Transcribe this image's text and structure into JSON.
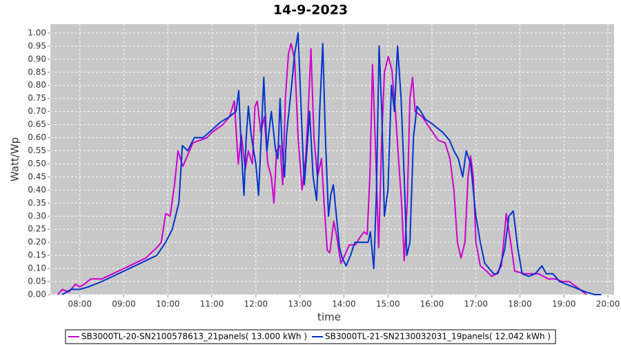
{
  "chart_data": {
    "type": "line",
    "title": "14-9-2023",
    "x_label": "time",
    "y_label": "Watt/Wp",
    "xlim": [
      7.33,
      20.14
    ],
    "ylim": [
      0,
      1.034
    ],
    "grid": true,
    "legend": "bottom",
    "xticks": [
      {
        "value": 8,
        "label": "08:00"
      },
      {
        "value": 9,
        "label": "09:00"
      },
      {
        "value": 10,
        "label": "10:00"
      },
      {
        "value": 11,
        "label": "11:00"
      },
      {
        "value": 12,
        "label": "12:00"
      },
      {
        "value": 13,
        "label": "13:00"
      },
      {
        "value": 14,
        "label": "14:00"
      },
      {
        "value": 15,
        "label": "15:00"
      },
      {
        "value": 16,
        "label": "16:00"
      },
      {
        "value": 17,
        "label": "17:00"
      },
      {
        "value": 18,
        "label": "18:00"
      },
      {
        "value": 19,
        "label": "19:00"
      },
      {
        "value": 20,
        "label": "20:00"
      }
    ],
    "yticks": [
      {
        "value": 0,
        "label": "0.00"
      },
      {
        "value": 0.05,
        "label": "0.05"
      },
      {
        "value": 0.1,
        "label": "0.10"
      },
      {
        "value": 0.15,
        "label": "0.15"
      },
      {
        "value": 0.2,
        "label": "0.20"
      },
      {
        "value": 0.25,
        "label": "0.25"
      },
      {
        "value": 0.3,
        "label": "0.30"
      },
      {
        "value": 0.35,
        "label": "0.35"
      },
      {
        "value": 0.4,
        "label": "0.40"
      },
      {
        "value": 0.45,
        "label": "0.45"
      },
      {
        "value": 0.5,
        "label": "0.50"
      },
      {
        "value": 0.55,
        "label": "0.55"
      },
      {
        "value": 0.6,
        "label": "0.60"
      },
      {
        "value": 0.65,
        "label": "0.65"
      },
      {
        "value": 0.7,
        "label": "0.70"
      },
      {
        "value": 0.75,
        "label": "0.75"
      },
      {
        "value": 0.8,
        "label": "0.80"
      },
      {
        "value": 0.85,
        "label": "0.85"
      },
      {
        "value": 0.9,
        "label": "0.90"
      },
      {
        "value": 0.95,
        "label": "0.95"
      },
      {
        "value": 1,
        "label": "1.00"
      }
    ],
    "series": [
      {
        "name": "SB3000TL-20-SN2100578613_21panels( 13.000 kWh )",
        "color": "#cc00cc",
        "x": [
          7.5,
          7.6,
          7.75,
          7.9,
          8.0,
          8.1,
          8.25,
          8.5,
          8.75,
          9.0,
          9.25,
          9.5,
          9.75,
          9.85,
          9.95,
          10.05,
          10.15,
          10.23,
          10.34,
          10.57,
          10.89,
          11.0,
          11.25,
          11.4,
          11.51,
          11.6,
          11.67,
          11.76,
          11.83,
          11.92,
          11.98,
          12.03,
          12.11,
          12.19,
          12.27,
          12.35,
          12.41,
          12.47,
          12.55,
          12.61,
          12.67,
          12.74,
          12.8,
          12.88,
          12.96,
          13.05,
          13.13,
          13.19,
          13.25,
          13.32,
          13.4,
          13.49,
          13.55,
          13.62,
          13.68,
          13.77,
          13.84,
          13.93,
          14.02,
          14.12,
          14.26,
          14.37,
          14.46,
          14.53,
          14.59,
          14.65,
          14.71,
          14.79,
          14.86,
          14.92,
          15.01,
          15.09,
          15.17,
          15.25,
          15.31,
          15.37,
          15.44,
          15.5,
          15.56,
          15.62,
          15.78,
          15.98,
          16.14,
          16.3,
          16.41,
          16.5,
          16.58,
          16.66,
          16.75,
          16.82,
          16.88,
          16.94,
          17.0,
          17.1,
          17.24,
          17.36,
          17.47,
          17.58,
          17.69,
          17.79,
          17.88,
          18.1,
          18.42,
          18.65,
          18.81,
          18.96,
          19.12,
          19.28,
          19.44,
          19.51
        ],
        "values": [
          0.0,
          0.02,
          0.01,
          0.04,
          0.03,
          0.04,
          0.06,
          0.06,
          0.08,
          0.1,
          0.12,
          0.14,
          0.18,
          0.2,
          0.31,
          0.3,
          0.42,
          0.55,
          0.49,
          0.58,
          0.6,
          0.62,
          0.65,
          0.68,
          0.74,
          0.5,
          0.61,
          0.48,
          0.55,
          0.5,
          0.72,
          0.74,
          0.62,
          0.68,
          0.5,
          0.45,
          0.35,
          0.55,
          0.57,
          0.42,
          0.75,
          0.92,
          0.96,
          0.9,
          0.6,
          0.4,
          0.52,
          0.7,
          0.94,
          0.6,
          0.45,
          0.52,
          0.35,
          0.17,
          0.16,
          0.28,
          0.22,
          0.12,
          0.15,
          0.19,
          0.19,
          0.22,
          0.24,
          0.23,
          0.45,
          0.88,
          0.6,
          0.18,
          0.6,
          0.85,
          0.91,
          0.86,
          0.7,
          0.5,
          0.35,
          0.13,
          0.35,
          0.75,
          0.83,
          0.7,
          0.68,
          0.63,
          0.59,
          0.58,
          0.52,
          0.4,
          0.2,
          0.14,
          0.2,
          0.45,
          0.53,
          0.45,
          0.2,
          0.11,
          0.09,
          0.07,
          0.08,
          0.11,
          0.31,
          0.2,
          0.09,
          0.08,
          0.08,
          0.06,
          0.06,
          0.05,
          0.05,
          0.03,
          0.01,
          0.0
        ]
      },
      {
        "name": "SB3000TL-21-SN2130032031_19panels( 12.042 kWh )",
        "color": "#0033cc",
        "x": [
          7.6,
          7.8,
          8.0,
          8.2,
          8.5,
          8.75,
          9.0,
          9.25,
          9.5,
          9.75,
          9.95,
          10.1,
          10.25,
          10.33,
          10.45,
          10.6,
          10.8,
          11.0,
          11.2,
          11.4,
          11.55,
          11.61,
          11.67,
          11.73,
          11.78,
          11.83,
          11.9,
          12.0,
          12.06,
          12.12,
          12.18,
          12.25,
          12.35,
          12.45,
          12.5,
          12.55,
          12.6,
          12.65,
          12.7,
          12.8,
          12.88,
          12.96,
          13.03,
          13.1,
          13.16,
          13.22,
          13.3,
          13.38,
          13.45,
          13.52,
          13.58,
          13.65,
          13.7,
          13.76,
          13.83,
          13.9,
          13.96,
          14.05,
          14.15,
          14.25,
          14.4,
          14.55,
          14.6,
          14.68,
          14.74,
          14.8,
          14.86,
          14.92,
          15.0,
          15.08,
          15.15,
          15.22,
          15.3,
          15.37,
          15.43,
          15.5,
          15.58,
          15.66,
          15.75,
          15.85,
          15.95,
          16.1,
          16.25,
          16.4,
          16.5,
          16.6,
          16.7,
          16.78,
          16.88,
          17.0,
          17.1,
          17.2,
          17.3,
          17.4,
          17.5,
          17.65,
          17.75,
          17.85,
          17.95,
          18.05,
          18.2,
          18.35,
          18.5,
          18.6,
          18.75,
          18.9,
          19.05,
          19.2,
          19.35,
          19.5,
          19.7,
          19.85
        ],
        "values": [
          0.0,
          0.02,
          0.02,
          0.03,
          0.05,
          0.07,
          0.09,
          0.11,
          0.13,
          0.15,
          0.2,
          0.25,
          0.35,
          0.57,
          0.55,
          0.6,
          0.6,
          0.63,
          0.66,
          0.68,
          0.7,
          0.78,
          0.55,
          0.38,
          0.6,
          0.72,
          0.6,
          0.5,
          0.38,
          0.6,
          0.83,
          0.55,
          0.7,
          0.55,
          0.52,
          0.75,
          0.55,
          0.45,
          0.62,
          0.78,
          0.92,
          1.0,
          0.7,
          0.42,
          0.55,
          0.7,
          0.45,
          0.36,
          0.7,
          0.96,
          0.6,
          0.3,
          0.38,
          0.42,
          0.3,
          0.18,
          0.14,
          0.11,
          0.15,
          0.2,
          0.2,
          0.2,
          0.24,
          0.1,
          0.4,
          0.95,
          0.7,
          0.3,
          0.4,
          0.8,
          0.7,
          0.95,
          0.75,
          0.45,
          0.15,
          0.2,
          0.6,
          0.72,
          0.7,
          0.67,
          0.66,
          0.64,
          0.62,
          0.59,
          0.55,
          0.52,
          0.45,
          0.55,
          0.5,
          0.3,
          0.2,
          0.12,
          0.1,
          0.08,
          0.08,
          0.17,
          0.3,
          0.32,
          0.18,
          0.08,
          0.07,
          0.08,
          0.11,
          0.08,
          0.08,
          0.05,
          0.04,
          0.03,
          0.02,
          0.01,
          0.0,
          0.0
        ]
      }
    ]
  }
}
